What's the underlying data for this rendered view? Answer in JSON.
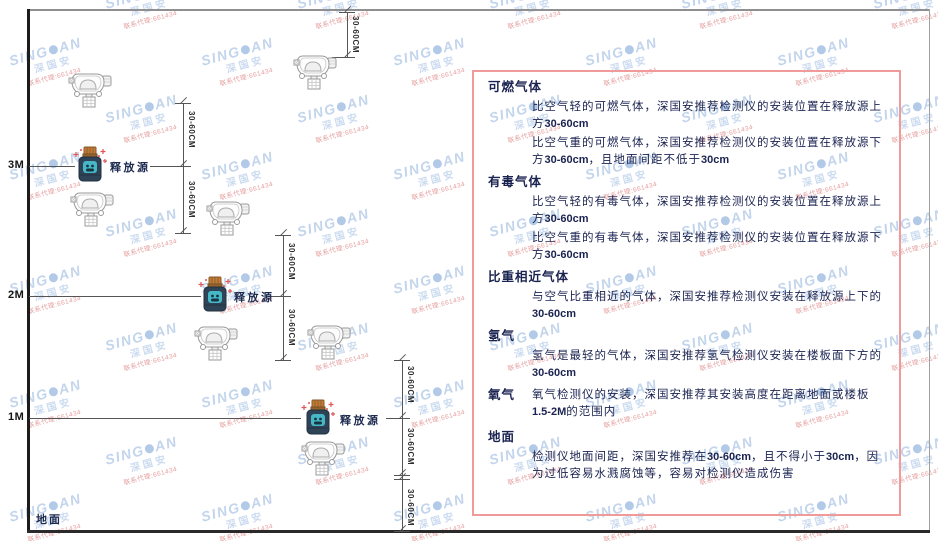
{
  "watermark": {
    "brand_left": "SING",
    "brand_right": "AN",
    "brand_cn": "深国安",
    "contact": "联系代理:661434"
  },
  "diagram": {
    "ground_label": "地面",
    "release_source_label": "释放源",
    "dim_label": "30-60CM",
    "levels": [
      {
        "label": "3M"
      },
      {
        "label": "2M"
      },
      {
        "label": "1M"
      }
    ]
  },
  "panel": {
    "border_color": "#f09a9a",
    "sections": [
      {
        "heading": "可燃气体",
        "inline": false,
        "paragraphs": [
          "比空气轻的可燃气体，深国安推荐检测仪的安装位置在释放源上方30-60cm",
          "比空气重的可燃气体，深国安推荐检测仪的安装位置在释放源下方30-60cm，且地面间距不低于30cm"
        ]
      },
      {
        "heading": "有毒气体",
        "inline": false,
        "paragraphs": [
          "比空气轻的有毒气体，深国安推荐检测仪的安装位置在释放源上方30-60cm",
          "比空气重的有毒气体，深国安推荐检测仪的安装位置在释放源下方30-60cm"
        ]
      },
      {
        "heading": "比重相近气体",
        "inline": false,
        "paragraphs": [
          "与空气比重相近的气体，深国安推荐检测仪安装在释放源上下的30-60cm"
        ]
      },
      {
        "heading": "氢气",
        "inline": false,
        "paragraphs": [
          "氢气是最轻的气体，深国安推荐氢气检测仪安装在楼板面下方的30-60cm"
        ]
      },
      {
        "heading": "氧气",
        "inline": true,
        "paragraphs": [
          "氧气检测仪的安装，深国安推荐其安装高度在距离地面或楼板1.5-2M的范围内"
        ]
      },
      {
        "heading": "地面",
        "inline": false,
        "paragraphs": [
          "检测仪地面间距，深国安推荐在30-60cm，且不得小于30cm，因为过低容易水溅腐蚀等，容易对检测仪造成伤害"
        ]
      }
    ]
  },
  "colors": {
    "watermark_blue": "#bdd1ea",
    "watermark_red": "#d96a6a",
    "panel_border": "#f09a9a",
    "text_navy": "#1b2350",
    "diagram_line": "#555555",
    "source_body": "#2f4357",
    "source_cap": "#bf7a38",
    "source_emblem": "#46b7c7",
    "spark_red": "#e05555"
  }
}
